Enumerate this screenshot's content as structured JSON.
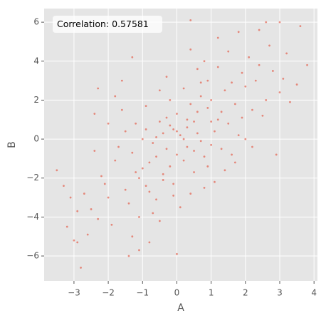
{
  "chart_data": {
    "type": "scatter",
    "annotation": "Correlation: 0.57581",
    "xlabel": "A",
    "ylabel": "B",
    "color": "#E24A33",
    "grid": true,
    "xlim": [
      -3.87,
      4.1
    ],
    "ylim": [
      -7.28,
      6.7
    ],
    "xticks": [
      {
        "value": -3,
        "label": "−3"
      },
      {
        "value": -2,
        "label": "−2"
      },
      {
        "value": -1,
        "label": "−1"
      },
      0,
      1,
      2,
      3,
      4
    ],
    "yticks": [
      {
        "value": -6,
        "label": "−6"
      },
      {
        "value": -4,
        "label": "−4"
      },
      {
        "value": -2,
        "label": "−2"
      },
      0,
      2,
      4,
      6
    ],
    "x": [
      -2.8,
      3.6,
      3.8,
      -3.5,
      0.4,
      2.6,
      3.0,
      -1.4,
      0.0,
      3.2,
      -3.2,
      -2.3,
      -3.0,
      -2.9,
      -1.3,
      1.8,
      2.4,
      3.0,
      2.9,
      -1.6,
      0.1,
      -0.3,
      0.5,
      -0.8,
      0.9,
      -0.2,
      0.3,
      -0.6,
      1.2,
      -1.1,
      0.7,
      -0.4,
      0.0,
      0.2,
      -0.9,
      1.0,
      -1.3,
      1.4,
      0.6,
      -0.1,
      0.4,
      -0.5,
      1.1,
      -1.5,
      1.7,
      -0.7,
      0.8,
      -0.2,
      0.3,
      -1.0,
      1.5,
      -1.8,
      2.0,
      -0.3,
      0.9,
      -1.2,
      0.5,
      1.3,
      -2.0,
      2.2,
      -0.6,
      0.0,
      0.6,
      -0.4,
      1.0,
      -1.7,
      1.9,
      -2.2,
      2.3,
      -0.8,
      0.7,
      -0.1,
      1.6,
      -1.4,
      0.2,
      -0.9,
      1.2,
      -2.5,
      2.6,
      -1.1,
      0.4,
      1.8,
      -2.4,
      0.8,
      -0.5,
      2.1,
      -1.9,
      1.4,
      -0.3,
      0.1,
      2.8,
      -2.7,
      1.1,
      -1.6,
      0.6,
      -0.7,
      2.5,
      -2.1,
      1.5,
      -1.3,
      0.9,
      -0.2,
      0.3,
      -0.6,
      1.3,
      -1.0,
      0.0,
      0.5,
      -0.4,
      1.0,
      -1.5,
      1.6,
      -0.9,
      0.2,
      0.7,
      -1.2,
      1.9,
      -2.3,
      2.4,
      -0.1,
      3.1,
      -3.3,
      2.7,
      -2.6,
      3.3,
      -2.9,
      1.7,
      -1.8,
      0.4,
      -0.8,
      2.0,
      -2.0,
      1.2,
      -1.1,
      3.5,
      -3.1,
      0.8,
      -0.5,
      2.2,
      -2.4
    ],
    "values": [
      -6.6,
      5.8,
      3.8,
      -1.6,
      6.1,
      6.0,
      6.0,
      -6.0,
      -5.9,
      4.4,
      -4.5,
      2.6,
      -5.2,
      -5.3,
      4.2,
      5.5,
      5.6,
      2.4,
      -0.8,
      3.0,
      0.2,
      -0.5,
      0.9,
      -1.2,
      1.6,
      0.7,
      -0.4,
      0.1,
      1.0,
      -2.0,
      2.2,
      -1.8,
      1.3,
      -1.1,
      0.5,
      -0.3,
      -0.7,
      2.5,
      0.3,
      -2.3,
      1.8,
      0.9,
      0.4,
      -2.6,
      1.8,
      -0.2,
      -0.9,
      2.0,
      0.6,
      -1.5,
      0.8,
      -1.1,
      2.7,
      1.1,
      3.0,
      0.8,
      -1.7,
      -0.5,
      -3.0,
      1.5,
      -3.1,
      -0.8,
      1.4,
      0.3,
      2.0,
      -0.4,
      3.4,
      -1.9,
      3.0,
      -2.7,
      -0.1,
      0.5,
      2.9,
      -3.3,
      2.6,
      1.7,
      3.7,
      -3.6,
      2.0,
      -4.0,
      -2.8,
      0.2,
      -0.6,
      4.0,
      -4.2,
      4.2,
      -4.4,
      -1.6,
      3.2,
      -3.5,
      3.5,
      -2.8,
      -2.2,
      1.5,
      3.6,
      -3.8,
      1.2,
      -2.3,
      4.5,
      -5.0,
      -1.4,
      -1.4,
      1.0,
      -0.9,
      1.4,
      0.0,
      0.4,
      -0.6,
      -2.1,
      0.9,
      0.4,
      -0.8,
      -2.4,
      0.0,
      2.9,
      -1.7,
      1.1,
      -4.1,
      3.8,
      -2.9,
      3.1,
      -2.4,
      4.8,
      -4.9,
      1.9,
      -3.7,
      -1.2,
      2.2,
      4.6,
      -5.3,
      0.0,
      0.8,
      5.2,
      -5.7,
      2.8,
      -3.0,
      -2.5,
      2.5,
      -0.4,
      1.3
    ]
  }
}
